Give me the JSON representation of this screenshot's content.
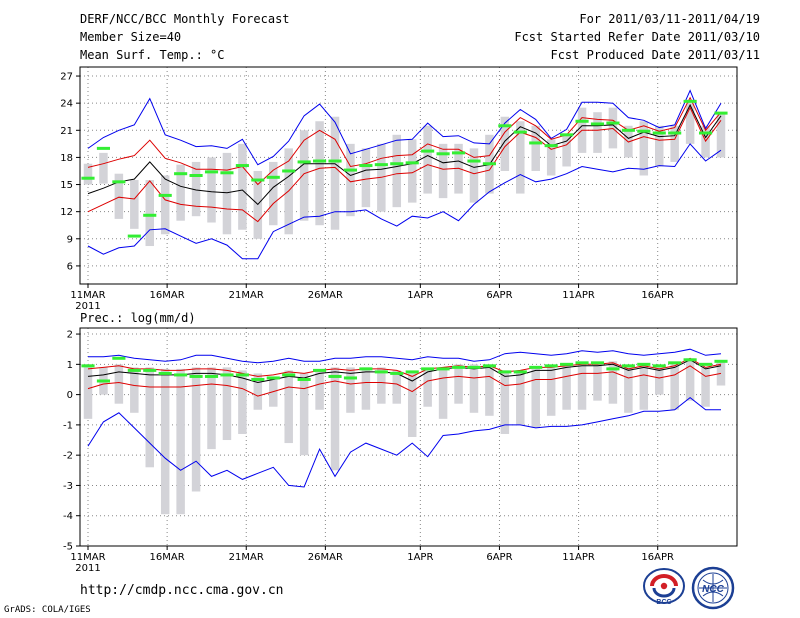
{
  "header": {
    "title": "DERF/NCC/BCC Monthly Forecast",
    "member_size": "Member Size=40",
    "variable": "Mean Surf. Temp.: °C",
    "forecast_period": "For 2011/03/11-2011/04/19",
    "started_refer": "Fcst Started Refer Date 2011/03/10",
    "produced": "Fcst Produced Date 2011/03/11"
  },
  "footer": {
    "url": "http://cmdp.ncc.cma.gov.cn",
    "grads_credit": "GrADS: COLA/IGES",
    "logo_bcc_text": "BCC",
    "logo_ncc_text": "NCC"
  },
  "colors": {
    "outer_line": "#0000ee",
    "inner_line": "#dd0000",
    "median_line": "#000000",
    "bar": "#d3d3d8",
    "observed": "#33ee33",
    "grid": "#888888"
  },
  "chart_data": [
    {
      "type": "line",
      "title": "Mean Surf. Temp.: °C",
      "x_days": 40,
      "ylim": [
        4,
        28
      ],
      "yticks": [
        6,
        9,
        12,
        15,
        18,
        21,
        24,
        27
      ],
      "xticks": [
        {
          "day": 0,
          "label": "11MAR"
        },
        {
          "day": 5,
          "label": "16MAR"
        },
        {
          "day": 10,
          "label": "21MAR"
        },
        {
          "day": 15,
          "label": "26MAR"
        },
        {
          "day": 21,
          "label": "1APR"
        },
        {
          "day": 26,
          "label": "6APR"
        },
        {
          "day": 31,
          "label": "11APR"
        },
        {
          "day": 36,
          "label": "16APR"
        }
      ],
      "year_label": "2011",
      "grid": true,
      "series": [
        {
          "name": "max",
          "role": "outer",
          "values": [
            19.0,
            20.2,
            21.0,
            21.6,
            24.5,
            20.5,
            19.9,
            19.2,
            19.3,
            19.0,
            20.0,
            17.2,
            18.1,
            19.8,
            22.6,
            23.9,
            21.9,
            18.4,
            18.9,
            19.4,
            19.9,
            20.0,
            21.8,
            20.3,
            20.4,
            19.6,
            19.5,
            21.8,
            23.3,
            22.2,
            20.1,
            21.1,
            24.1,
            24.1,
            24.0,
            22.4,
            22.1,
            21.3,
            21.6,
            25.4,
            21.2,
            24.0
          ]
        },
        {
          "name": "p75",
          "role": "inner",
          "values": [
            16.9,
            17.3,
            17.8,
            18.2,
            19.9,
            17.9,
            17.4,
            16.7,
            16.7,
            16.6,
            17.0,
            15.0,
            16.6,
            17.6,
            19.9,
            21.0,
            20.0,
            17.0,
            17.3,
            17.9,
            18.2,
            18.3,
            19.5,
            18.9,
            18.9,
            18.0,
            18.2,
            20.8,
            22.4,
            21.5,
            20.0,
            20.5,
            22.4,
            22.2,
            22.1,
            21.0,
            21.5,
            20.9,
            21.3,
            24.6,
            21.0,
            23.0
          ]
        },
        {
          "name": "median",
          "role": "median",
          "values": [
            14.0,
            14.6,
            15.3,
            15.6,
            17.5,
            15.6,
            14.8,
            14.4,
            14.2,
            14.1,
            14.4,
            12.8,
            14.7,
            15.9,
            17.3,
            17.3,
            17.3,
            16.0,
            16.6,
            16.7,
            17.0,
            17.3,
            18.2,
            17.4,
            17.6,
            16.9,
            17.2,
            19.8,
            21.4,
            20.7,
            19.3,
            19.8,
            21.5,
            21.5,
            21.6,
            20.1,
            20.8,
            20.3,
            20.4,
            23.8,
            20.2,
            22.6
          ]
        },
        {
          "name": "p25",
          "role": "inner",
          "values": [
            12.0,
            12.8,
            13.6,
            13.4,
            15.4,
            13.3,
            12.8,
            12.6,
            12.5,
            12.3,
            12.2,
            10.9,
            12.9,
            14.3,
            16.2,
            16.8,
            16.9,
            15.3,
            15.6,
            15.8,
            16.2,
            16.3,
            17.2,
            16.7,
            16.8,
            16.2,
            16.6,
            19.2,
            20.8,
            20.2,
            18.9,
            19.4,
            21.0,
            21.0,
            21.2,
            19.7,
            20.3,
            19.9,
            20.0,
            23.5,
            19.8,
            22.1
          ]
        },
        {
          "name": "min",
          "role": "outer",
          "values": [
            8.2,
            7.3,
            8.0,
            8.2,
            10.0,
            10.1,
            9.3,
            8.5,
            9.0,
            8.3,
            6.8,
            6.8,
            9.8,
            10.6,
            11.4,
            11.5,
            12.0,
            12.0,
            12.2,
            11.2,
            10.4,
            11.5,
            11.3,
            12.0,
            11.0,
            12.8,
            14.2,
            15.2,
            16.1,
            15.3,
            15.6,
            16.2,
            17.0,
            16.7,
            16.4,
            16.8,
            16.7,
            17.1,
            17.0,
            19.5,
            17.6,
            18.8
          ]
        }
      ],
      "box_range": [
        [
          15.0,
          17.3
        ],
        [
          15.1,
          18.5
        ],
        [
          11.2,
          16.2
        ],
        [
          10.1,
          15.5
        ],
        [
          8.2,
          15.5
        ],
        [
          9.5,
          16.0
        ],
        [
          11.0,
          17.2
        ],
        [
          11.5,
          17.5
        ],
        [
          10.8,
          18.0
        ],
        [
          9.5,
          18.5
        ],
        [
          10.0,
          19.5
        ],
        [
          9.0,
          16.5
        ],
        [
          10.5,
          17.5
        ],
        [
          9.5,
          19.0
        ],
        [
          11.0,
          21.0
        ],
        [
          10.5,
          22.0
        ],
        [
          10.0,
          22.5
        ],
        [
          11.5,
          19.5
        ],
        [
          12.5,
          19.0
        ],
        [
          12.0,
          19.5
        ],
        [
          12.5,
          20.5
        ],
        [
          13.0,
          20.0
        ],
        [
          14.0,
          21.5
        ],
        [
          13.5,
          19.5
        ],
        [
          14.0,
          19.5
        ],
        [
          13.0,
          19.0
        ],
        [
          14.0,
          20.5
        ],
        [
          16.5,
          22.5
        ],
        [
          14.0,
          22.0
        ],
        [
          16.5,
          21.5
        ],
        [
          16.0,
          20.0
        ],
        [
          17.0,
          20.5
        ],
        [
          18.5,
          23.5
        ],
        [
          18.5,
          23.0
        ],
        [
          19.0,
          23.5
        ],
        [
          18.0,
          21.5
        ],
        [
          16.0,
          22.0
        ],
        [
          17.0,
          21.5
        ],
        [
          17.5,
          21.5
        ],
        [
          19.5,
          24.0
        ],
        [
          18.0,
          21.5
        ],
        [
          18.0,
          23.0
        ]
      ],
      "observed": [
        15.7,
        19.0,
        15.3,
        9.3,
        11.6,
        13.8,
        16.2,
        16.0,
        16.4,
        16.3,
        17.1,
        15.5,
        15.8,
        16.5,
        17.5,
        17.6,
        17.6,
        16.6,
        17.1,
        17.2,
        17.3,
        17.4,
        18.7,
        18.4,
        18.5,
        17.6,
        17.3,
        21.5,
        20.8,
        19.6,
        19.3,
        20.5,
        22.0,
        21.7,
        21.8,
        21.0,
        20.9,
        20.7,
        20.7,
        24.2,
        20.7,
        22.9
      ]
    },
    {
      "type": "line",
      "title": "Prec.: log(mm/d)",
      "x_days": 40,
      "ylim": [
        -5,
        2.2
      ],
      "yticks": [
        -5,
        -4,
        -3,
        -2,
        -1,
        0,
        1,
        2
      ],
      "xticks": [
        {
          "day": 0,
          "label": "11MAR"
        },
        {
          "day": 5,
          "label": "16MAR"
        },
        {
          "day": 10,
          "label": "21MAR"
        },
        {
          "day": 15,
          "label": "26MAR"
        },
        {
          "day": 21,
          "label": "1APR"
        },
        {
          "day": 26,
          "label": "6APR"
        },
        {
          "day": 31,
          "label": "11APR"
        },
        {
          "day": 36,
          "label": "16APR"
        }
      ],
      "year_label": "2011",
      "grid": true,
      "series": [
        {
          "name": "max",
          "role": "outer",
          "values": [
            1.25,
            1.25,
            1.3,
            1.2,
            1.15,
            1.1,
            1.15,
            1.3,
            1.3,
            1.2,
            1.1,
            1.05,
            1.1,
            1.2,
            1.1,
            1.1,
            1.2,
            1.2,
            1.25,
            1.25,
            1.2,
            1.15,
            1.25,
            1.2,
            1.2,
            1.1,
            1.15,
            1.35,
            1.4,
            1.35,
            1.3,
            1.35,
            1.45,
            1.4,
            1.45,
            1.35,
            1.3,
            1.35,
            1.4,
            1.5,
            1.3,
            1.35
          ]
        },
        {
          "name": "p75",
          "role": "inner",
          "values": [
            0.85,
            0.9,
            0.95,
            0.85,
            0.85,
            0.8,
            0.8,
            0.85,
            0.85,
            0.8,
            0.7,
            0.6,
            0.65,
            0.75,
            0.7,
            0.8,
            0.85,
            0.8,
            0.85,
            0.85,
            0.8,
            0.6,
            0.85,
            0.9,
            0.95,
            0.9,
            0.95,
            0.75,
            0.8,
            0.9,
            0.9,
            0.95,
            1.0,
            1.0,
            1.05,
            0.85,
            0.95,
            0.85,
            0.95,
            1.2,
            0.9,
            1.0
          ]
        },
        {
          "name": "median",
          "role": "median",
          "values": [
            0.6,
            0.65,
            0.75,
            0.7,
            0.65,
            0.65,
            0.65,
            0.7,
            0.7,
            0.65,
            0.55,
            0.4,
            0.5,
            0.6,
            0.55,
            0.7,
            0.75,
            0.7,
            0.75,
            0.75,
            0.7,
            0.45,
            0.75,
            0.85,
            0.9,
            0.85,
            0.9,
            0.6,
            0.65,
            0.8,
            0.8,
            0.9,
            0.95,
            0.95,
            1.0,
            0.8,
            0.9,
            0.8,
            0.9,
            1.15,
            0.85,
            0.95
          ]
        },
        {
          "name": "p25",
          "role": "inner",
          "values": [
            0.2,
            0.35,
            0.4,
            0.3,
            0.25,
            0.25,
            0.25,
            0.3,
            0.35,
            0.3,
            0.2,
            -0.05,
            0.1,
            0.25,
            0.2,
            0.35,
            0.45,
            0.35,
            0.4,
            0.4,
            0.35,
            0.1,
            0.45,
            0.55,
            0.6,
            0.55,
            0.6,
            0.3,
            0.35,
            0.5,
            0.5,
            0.6,
            0.7,
            0.7,
            0.75,
            0.55,
            0.65,
            0.55,
            0.65,
            0.95,
            0.6,
            0.7
          ]
        },
        {
          "name": "min",
          "role": "outer",
          "values": [
            -1.7,
            -0.9,
            -0.6,
            -1.1,
            -1.6,
            -2.1,
            -2.5,
            -2.2,
            -2.7,
            -2.5,
            -2.8,
            -2.6,
            -2.4,
            -3.0,
            -3.05,
            -1.8,
            -2.7,
            -1.9,
            -1.6,
            -1.8,
            -2.0,
            -1.6,
            -2.05,
            -1.35,
            -1.3,
            -1.2,
            -1.15,
            -1.0,
            -1.0,
            -1.1,
            -1.05,
            -1.05,
            -1.0,
            -0.9,
            -0.8,
            -0.7,
            -0.55,
            -0.55,
            -0.5,
            -0.1,
            -0.5,
            -0.5
          ]
        }
      ],
      "box_range": [
        [
          -0.8,
          1.0
        ],
        [
          0.0,
          0.9
        ],
        [
          -0.3,
          1.0
        ],
        [
          -0.6,
          0.9
        ],
        [
          -2.4,
          0.9
        ],
        [
          -3.95,
          0.85
        ],
        [
          -3.95,
          0.85
        ],
        [
          -3.2,
          0.9
        ],
        [
          -1.8,
          0.9
        ],
        [
          -1.5,
          0.9
        ],
        [
          -1.3,
          0.8
        ],
        [
          -0.5,
          0.7
        ],
        [
          -0.4,
          0.6
        ],
        [
          -1.6,
          0.8
        ],
        [
          -2.0,
          0.7
        ],
        [
          -0.5,
          0.8
        ],
        [
          -2.5,
          0.9
        ],
        [
          -0.6,
          0.9
        ],
        [
          -0.5,
          0.9
        ],
        [
          -0.3,
          0.9
        ],
        [
          -0.3,
          0.8
        ],
        [
          -1.4,
          0.7
        ],
        [
          -0.4,
          0.8
        ],
        [
          -0.8,
          0.9
        ],
        [
          -0.3,
          1.0
        ],
        [
          -0.6,
          1.0
        ],
        [
          -0.7,
          1.0
        ],
        [
          -1.3,
          0.8
        ],
        [
          -1.0,
          0.8
        ],
        [
          -1.1,
          0.9
        ],
        [
          -0.7,
          0.9
        ],
        [
          -0.5,
          1.0
        ],
        [
          -0.5,
          1.0
        ],
        [
          -0.2,
          1.0
        ],
        [
          -0.3,
          1.1
        ],
        [
          -0.6,
          0.9
        ],
        [
          -0.5,
          1.0
        ],
        [
          0.0,
          0.9
        ],
        [
          -0.5,
          1.0
        ],
        [
          -0.2,
          1.2
        ],
        [
          -0.4,
          0.9
        ],
        [
          0.3,
          1.1
        ]
      ],
      "observed": [
        0.95,
        0.45,
        1.2,
        0.8,
        0.8,
        0.7,
        0.65,
        0.6,
        0.6,
        0.65,
        0.65,
        0.5,
        0.55,
        0.65,
        0.5,
        0.8,
        0.6,
        0.55,
        0.85,
        0.75,
        0.7,
        0.75,
        0.85,
        0.85,
        0.9,
        0.9,
        0.95,
        0.75,
        0.75,
        0.9,
        0.95,
        1.0,
        1.05,
        1.05,
        0.85,
        0.95,
        1.0,
        0.95,
        1.05,
        1.15,
        1.0,
        1.1
      ]
    }
  ]
}
